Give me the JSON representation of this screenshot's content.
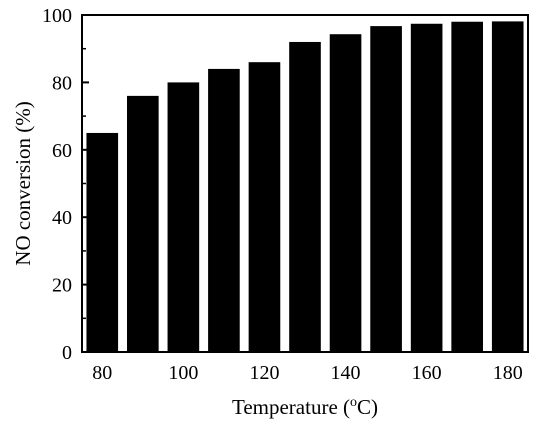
{
  "chart_data": {
    "type": "bar",
    "x": [
      80,
      90,
      100,
      110,
      120,
      130,
      140,
      150,
      160,
      170,
      180
    ],
    "values": [
      65,
      76,
      80,
      84,
      86,
      92,
      94.3,
      96.7,
      97.4,
      98,
      98.1
    ],
    "bar_color": "#000000",
    "xlabel_prefix": "Temperature (",
    "xlabel_sup": "o",
    "xlabel_suffix": "C)",
    "ylabel": "NO conversion (%)",
    "xlim": [
      75,
      185
    ],
    "ylim": [
      0,
      100
    ],
    "x_ticks": [
      80,
      100,
      120,
      140,
      160,
      180
    ],
    "y_ticks": [
      0,
      20,
      40,
      60,
      80,
      100
    ],
    "grid": false,
    "legend": "none"
  }
}
